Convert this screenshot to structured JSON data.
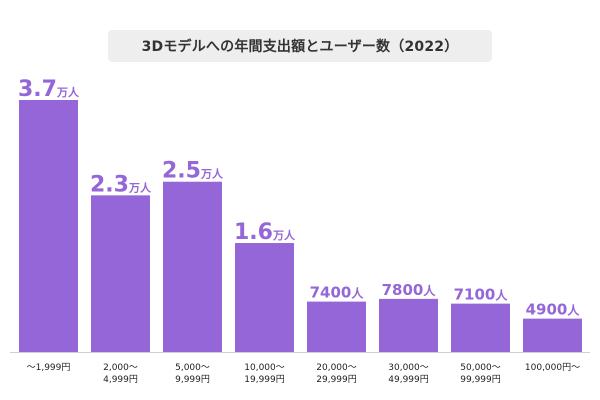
{
  "chart_data": {
    "type": "bar",
    "title": "3Dモデルへの年間支出額とユーザー数（2022）",
    "categories": [
      "〜1,999円",
      "2,000〜\n4,999円",
      "5,000〜\n9,999円",
      "10,000〜\n19,999円",
      "20,000〜\n29,999円",
      "30,000〜\n49,999円",
      "50,000〜\n99,999円",
      "100,000円〜"
    ],
    "values": [
      37000,
      23000,
      25000,
      16000,
      7400,
      7800,
      7100,
      4900
    ],
    "labels": [
      {
        "num": "3.7",
        "unit": "万人"
      },
      {
        "num": "2.3",
        "unit": "万人"
      },
      {
        "num": "2.5",
        "unit": "万人"
      },
      {
        "num": "1.6",
        "unit": "万人"
      },
      {
        "num": "7400",
        "unit": "人"
      },
      {
        "num": "7800",
        "unit": "人"
      },
      {
        "num": "7100",
        "unit": "人"
      },
      {
        "num": "4900",
        "unit": "人"
      }
    ],
    "xlabel": "",
    "ylabel": "",
    "ylim": [
      0,
      37000
    ],
    "grid": false,
    "bar_color": "#9466d8",
    "axis_color": "#cfcfcf"
  }
}
